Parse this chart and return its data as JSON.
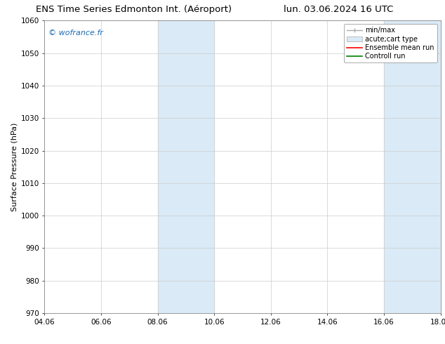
{
  "title_left": "ENS Time Series Edmonton Int. (Aéroport)",
  "title_right": "lun. 03.06.2024 16 UTC",
  "ylabel": "Surface Pressure (hPa)",
  "ylim": [
    970,
    1060
  ],
  "yticks": [
    970,
    980,
    990,
    1000,
    1010,
    1020,
    1030,
    1040,
    1050,
    1060
  ],
  "xtick_labels": [
    "04.06",
    "06.06",
    "08.06",
    "10.06",
    "12.06",
    "14.06",
    "16.06",
    "18.06"
  ],
  "xtick_positions": [
    0,
    2,
    4,
    6,
    8,
    10,
    12,
    14
  ],
  "shaded_bands": [
    {
      "x_start": 4,
      "x_end": 6
    },
    {
      "x_start": 12,
      "x_end": 14
    }
  ],
  "shaded_color": "#daeaf6",
  "watermark_text": "© wofrance.fr",
  "watermark_color": "#1a6bb5",
  "bg_color": "#ffffff",
  "plot_bg_color": "#ffffff",
  "grid_color": "#cccccc",
  "title_fontsize": 9.5,
  "ylabel_fontsize": 8,
  "tick_fontsize": 7.5,
  "watermark_fontsize": 8,
  "legend_fontsize": 7
}
